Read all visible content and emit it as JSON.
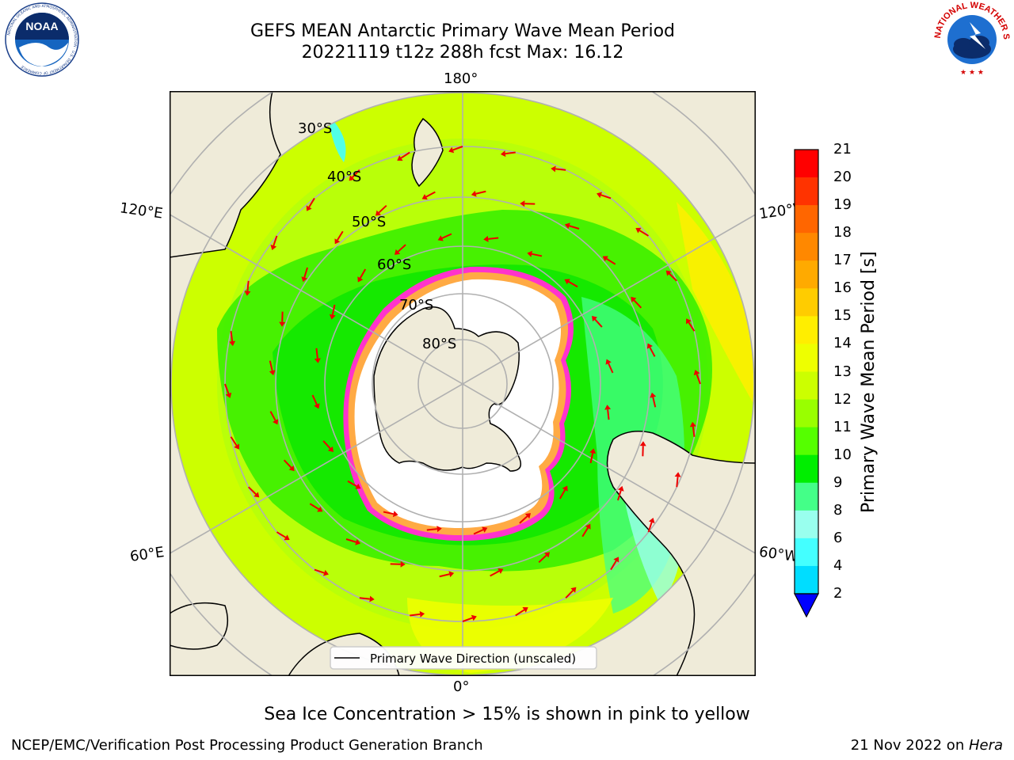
{
  "title": {
    "line1": "GEFS MEAN Antarctic Primary Wave Mean Period",
    "line2": "20221119 t12z 288h fcst   Max: 16.12"
  },
  "logos": {
    "noaa": {
      "icon": "noaa-logo-icon",
      "center_text": "NOAA",
      "ring_text": "NATIONAL OCEANIC AND ATMOSPHERIC ADMINISTRATION · U.S. DEPARTMENT OF COMMERCE"
    },
    "nws": {
      "icon": "nws-logo-icon",
      "ring_text": "NATIONAL WEATHER SERVICE"
    }
  },
  "map": {
    "projection": "south-polar-stereographic",
    "meridian_labels": {
      "top": "180°",
      "bottom": "0°",
      "left_upper": "120°E",
      "left_lower": "60°E",
      "right_upper": "120°W",
      "right_lower": "60°W"
    },
    "latitude_labels": [
      "30°S",
      "40°S",
      "50°S",
      "60°S",
      "70°S",
      "80°S"
    ],
    "legend": {
      "label": "Primary Wave Direction (unscaled)"
    }
  },
  "colorbar": {
    "label": "Primary Wave Mean Period [s]",
    "ticks": [
      "21",
      "20",
      "19",
      "18",
      "17",
      "16",
      "15",
      "14",
      "13",
      "12",
      "11",
      "10",
      "9",
      "8",
      "6",
      "4",
      "2"
    ],
    "colors": [
      "#ff0000",
      "#ff3300",
      "#ff6600",
      "#ff8800",
      "#ffaa00",
      "#ffcc00",
      "#ffee00",
      "#eeff00",
      "#ccff00",
      "#99ff00",
      "#55ff00",
      "#00ee00",
      "#44ff88",
      "#99ffee",
      "#44ffff",
      "#00ddff",
      "#0088ff"
    ],
    "under_color": "#0000ff"
  },
  "colors": {
    "land": "#efebd9",
    "ice": "#ffffff",
    "ice_edge_pink": "#ff33cc",
    "ice_edge_orange": "#ffaa44",
    "arrow": "#ee0000",
    "grid": "#b0b0b0"
  },
  "ice_note": "Sea Ice Concentration > 15% is shown in pink to yellow",
  "footer": {
    "left": "NCEP/EMC/Verification Post Processing Product Generation Branch",
    "right_date": "21 Nov 2022 on ",
    "right_host": "Hera"
  }
}
